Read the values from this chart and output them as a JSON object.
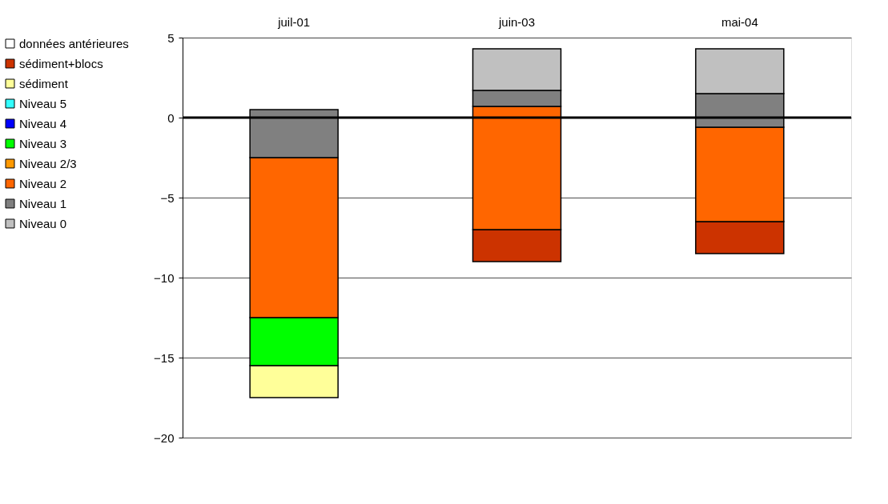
{
  "chart_data": {
    "type": "bar",
    "categories": [
      "juil-01",
      "juin-03",
      "mai-04"
    ],
    "series": [
      {
        "name": "données antérieures",
        "color": "#ffffff",
        "values": [
          null,
          null,
          null
        ]
      },
      {
        "name": "sédiment+blocs",
        "color": "#cc3300",
        "values": [
          null,
          2,
          2
        ],
        "base": [
          null,
          -9,
          -8.5
        ]
      },
      {
        "name": "sédiment",
        "color": "#ffff99",
        "values": [
          2,
          null,
          null
        ],
        "base": [
          -17.5,
          null,
          null
        ]
      },
      {
        "name": "Niveau 5",
        "color": "#33ffff",
        "values": [
          null,
          null,
          null
        ]
      },
      {
        "name": "Niveau 4",
        "color": "#0000ff",
        "values": [
          null,
          null,
          null
        ]
      },
      {
        "name": "Niveau 3",
        "color": "#00ff00",
        "values": [
          3,
          null,
          null
        ],
        "base": [
          -15.5,
          null,
          null
        ]
      },
      {
        "name": "Niveau 2/3",
        "color": "#ff9900",
        "values": [
          null,
          null,
          null
        ]
      },
      {
        "name": "Niveau 2",
        "color": "#ff6600",
        "values": [
          10,
          7.7,
          5.9
        ],
        "base": [
          -12.5,
          -7,
          -6.5
        ]
      },
      {
        "name": "Niveau 1",
        "color": "#808080",
        "values": [
          3,
          1,
          2.1
        ],
        "base": [
          -2.5,
          0.7,
          -0.6
        ]
      },
      {
        "name": "Niveau 0",
        "color": "#c0c0c0",
        "values": [
          null,
          2.6,
          2.8
        ],
        "base": [
          null,
          1.7,
          1.5
        ]
      }
    ],
    "ylim": [
      -20,
      5
    ],
    "yticks": [
      -20,
      -15,
      -10,
      -5,
      0,
      5
    ],
    "ref_lines": [
      {
        "axis": "y",
        "value": 0,
        "color": "#000000"
      }
    ],
    "grid": "y",
    "legend": "left"
  }
}
